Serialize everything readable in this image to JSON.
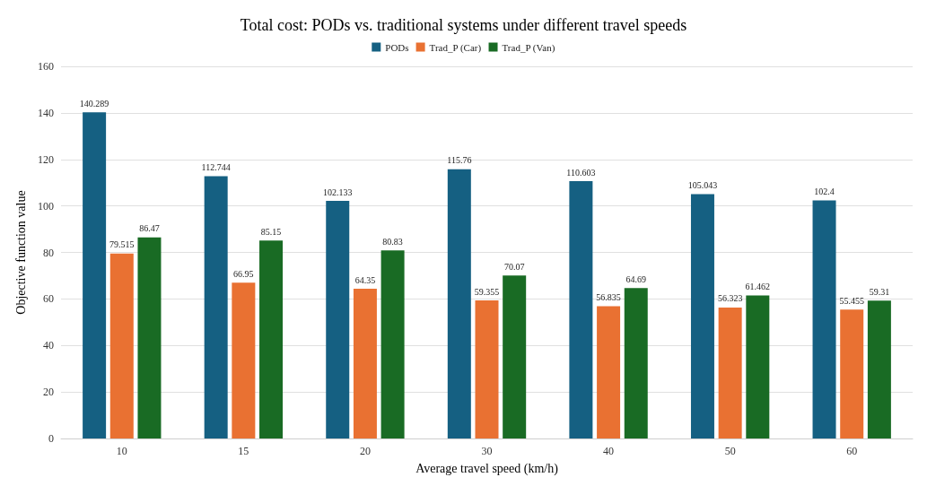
{
  "chart_data": {
    "type": "bar",
    "title": "Total cost: PODs vs. traditional systems under different travel speeds",
    "xlabel": "Average travel speed (km/h)",
    "ylabel": "Objective function value",
    "categories": [
      "10",
      "15",
      "20",
      "30",
      "40",
      "50",
      "60"
    ],
    "series": [
      {
        "name": "PODs",
        "color": "#156082",
        "values": [
          140.289,
          112.744,
          102.133,
          115.76,
          110.603,
          105.043,
          102.4
        ]
      },
      {
        "name": "Trad_P (Car)",
        "color": "#e97132",
        "values": [
          79.515,
          66.95,
          64.35,
          59.355,
          56.835,
          56.323,
          55.455
        ]
      },
      {
        "name": "Trad_P (Van)",
        "color": "#196b24",
        "values": [
          86.47,
          85.15,
          80.83,
          70.07,
          64.69,
          61.462,
          59.31
        ]
      }
    ],
    "ylim": [
      0,
      160
    ],
    "yticks": [
      0,
      20,
      40,
      60,
      80,
      100,
      120,
      140,
      160
    ],
    "grid": "y",
    "legend": "top",
    "data_labels": true
  }
}
